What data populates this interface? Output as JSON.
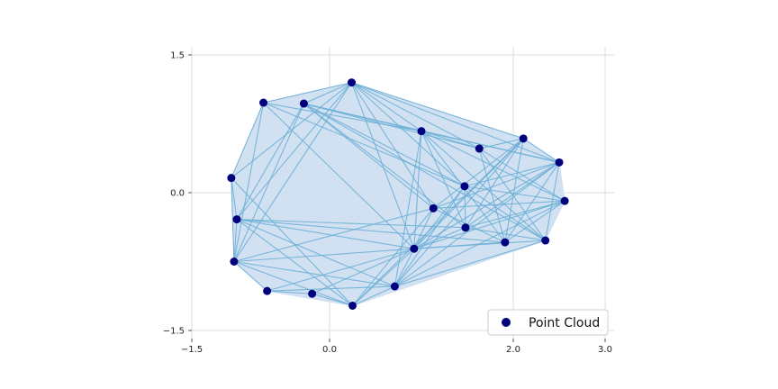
{
  "chart_data": {
    "type": "scatter",
    "title": "",
    "xlabel": "",
    "ylabel": "",
    "xlim": [
      -1.5,
      3.0
    ],
    "ylim": [
      -1.5,
      1.5
    ],
    "grid": true,
    "x_ticks": [
      {
        "value": -1.5,
        "label": "−1.5"
      },
      {
        "value": 0.0,
        "label": "0.0"
      },
      {
        "value": 2.0,
        "label": "2.0"
      },
      {
        "value": 3.0,
        "label": "3.0"
      }
    ],
    "y_ticks": [
      {
        "value": 1.5,
        "label": "1.5"
      },
      {
        "value": 0.0,
        "label": "0.0"
      },
      {
        "value": -1.5,
        "label": "−1.5"
      }
    ],
    "legend": {
      "position": "bottom-right",
      "entries": [
        "Point Cloud"
      ]
    },
    "colors": {
      "points": "#00007f",
      "edges": "#6aaed6",
      "hull_fill": "#cfdff0",
      "grid": "#dddddd"
    },
    "series": [
      {
        "name": "Point Cloud",
        "points": [
          {
            "x": 0.24,
            "y": 1.2
          },
          {
            "x": -0.72,
            "y": 0.98
          },
          {
            "x": -0.28,
            "y": 0.97
          },
          {
            "x": 1.0,
            "y": 0.67
          },
          {
            "x": 1.63,
            "y": 0.48
          },
          {
            "x": 2.11,
            "y": 0.59
          },
          {
            "x": 2.5,
            "y": 0.33
          },
          {
            "x": 2.56,
            "y": -0.09
          },
          {
            "x": 1.47,
            "y": 0.07
          },
          {
            "x": 1.13,
            "y": -0.17
          },
          {
            "x": 1.48,
            "y": -0.38
          },
          {
            "x": 1.91,
            "y": -0.54
          },
          {
            "x": 2.35,
            "y": -0.52
          },
          {
            "x": -1.07,
            "y": 0.16
          },
          {
            "x": -1.01,
            "y": -0.29
          },
          {
            "x": -1.04,
            "y": -0.75
          },
          {
            "x": -0.68,
            "y": -1.07
          },
          {
            "x": -0.19,
            "y": -1.1
          },
          {
            "x": 0.25,
            "y": -1.23
          },
          {
            "x": 0.71,
            "y": -1.02
          },
          {
            "x": 0.92,
            "y": -0.61
          }
        ]
      }
    ],
    "edges": [
      [
        0,
        1
      ],
      [
        0,
        2
      ],
      [
        0,
        3
      ],
      [
        0,
        5
      ],
      [
        0,
        8
      ],
      [
        0,
        9
      ],
      [
        0,
        13
      ],
      [
        0,
        14
      ],
      [
        0,
        15
      ],
      [
        0,
        20
      ],
      [
        0,
        6
      ],
      [
        0,
        4
      ],
      [
        1,
        13
      ],
      [
        1,
        15
      ],
      [
        1,
        3
      ],
      [
        1,
        8
      ],
      [
        1,
        20
      ],
      [
        2,
        3
      ],
      [
        2,
        4
      ],
      [
        2,
        8
      ],
      [
        2,
        10
      ],
      [
        2,
        15
      ],
      [
        2,
        14
      ],
      [
        2,
        6
      ],
      [
        2,
        9
      ],
      [
        2,
        12
      ],
      [
        3,
        4
      ],
      [
        3,
        6
      ],
      [
        3,
        7
      ],
      [
        3,
        10
      ],
      [
        3,
        19
      ],
      [
        3,
        20
      ],
      [
        3,
        11
      ],
      [
        3,
        12
      ],
      [
        4,
        5
      ],
      [
        4,
        7
      ],
      [
        4,
        11
      ],
      [
        4,
        12
      ],
      [
        5,
        6
      ],
      [
        5,
        9
      ],
      [
        5,
        20
      ],
      [
        5,
        19
      ],
      [
        5,
        10
      ],
      [
        5,
        18
      ],
      [
        5,
        11
      ],
      [
        6,
        8
      ],
      [
        6,
        20
      ],
      [
        6,
        9
      ],
      [
        6,
        11
      ],
      [
        6,
        12
      ],
      [
        6,
        10
      ],
      [
        6,
        19
      ],
      [
        7,
        20
      ],
      [
        7,
        9
      ],
      [
        7,
        10
      ],
      [
        7,
        11
      ],
      [
        7,
        19
      ],
      [
        7,
        8
      ],
      [
        8,
        20
      ],
      [
        8,
        10
      ],
      [
        8,
        19
      ],
      [
        8,
        12
      ],
      [
        9,
        20
      ],
      [
        9,
        11
      ],
      [
        9,
        18
      ],
      [
        10,
        20
      ],
      [
        10,
        12
      ],
      [
        11,
        20
      ],
      [
        12,
        19
      ],
      [
        12,
        20
      ],
      [
        13,
        14
      ],
      [
        13,
        15
      ],
      [
        13,
        18
      ],
      [
        14,
        15
      ],
      [
        14,
        20
      ],
      [
        14,
        19
      ],
      [
        14,
        11
      ],
      [
        14,
        18
      ],
      [
        14,
        10
      ],
      [
        15,
        16
      ],
      [
        15,
        20
      ],
      [
        15,
        18
      ],
      [
        15,
        19
      ],
      [
        15,
        9
      ],
      [
        16,
        19
      ],
      [
        16,
        20
      ],
      [
        16,
        17
      ],
      [
        17,
        20
      ],
      [
        17,
        18
      ],
      [
        18,
        19
      ],
      [
        18,
        20
      ],
      [
        19,
        20
      ]
    ]
  }
}
